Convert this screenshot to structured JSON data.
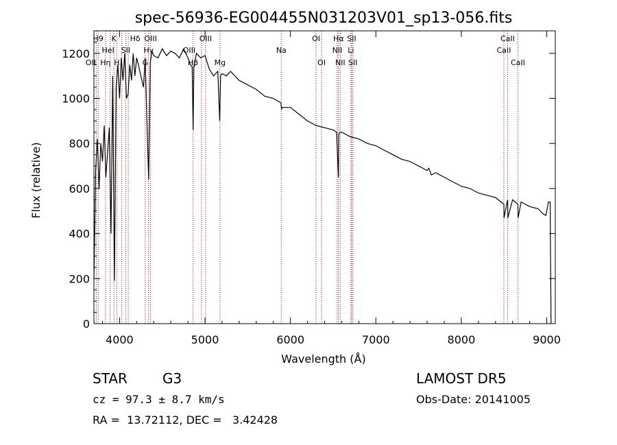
{
  "chart_data": {
    "type": "line",
    "title": "spec-56936-EG004455N031203V01_sp13-056.fits",
    "xlabel": "Wavelength (Å)",
    "ylabel": "Flux (relative)",
    "xlim": [
      3700,
      9100
    ],
    "ylim": [
      0,
      1300
    ],
    "xticks": [
      4000,
      5000,
      6000,
      7000,
      8000,
      9000
    ],
    "yticks": [
      0,
      200,
      400,
      600,
      800,
      1000,
      1200
    ],
    "grid": false,
    "series": [
      {
        "x": [
          3700,
          3720,
          3740,
          3760,
          3780,
          3800,
          3820,
          3840,
          3860,
          3880,
          3900,
          3920,
          3940,
          3960,
          3980,
          4000,
          4020,
          4040,
          4060,
          4080,
          4100,
          4120,
          4140,
          4160,
          4180,
          4200,
          4220,
          4250,
          4280,
          4300,
          4320,
          4340,
          4360,
          4380,
          4400,
          4450,
          4500,
          4550,
          4600,
          4650,
          4700,
          4750,
          4800,
          4830,
          4850,
          4861,
          4870,
          4900,
          4950,
          5000,
          5050,
          5100,
          5150,
          5172,
          5183,
          5200,
          5250,
          5300,
          5400,
          5500,
          5600,
          5700,
          5800,
          5890,
          5895,
          5900,
          6000,
          6100,
          6200,
          6300,
          6400,
          6500,
          6540,
          6562,
          6565,
          6580,
          6600,
          6700,
          6800,
          6900,
          7000,
          7100,
          7200,
          7300,
          7400,
          7500,
          7600,
          7620,
          7650,
          7700,
          7800,
          7900,
          8000,
          8100,
          8200,
          8300,
          8400,
          8498,
          8500,
          8542,
          8545,
          8600,
          8662,
          8665,
          8700,
          8800,
          8900,
          8950,
          8990,
          9000,
          9020,
          9040,
          9050
        ],
        "values": [
          200,
          680,
          820,
          600,
          800,
          720,
          880,
          650,
          760,
          870,
          400,
          1100,
          190,
          1050,
          1150,
          1000,
          1180,
          1080,
          1200,
          1000,
          1020,
          1150,
          1080,
          1200,
          1100,
          1180,
          1150,
          1100,
          1050,
          1180,
          900,
          640,
          1160,
          1210,
          1190,
          1180,
          1220,
          1190,
          1210,
          1200,
          1180,
          1220,
          1180,
          1150,
          1140,
          860,
          1140,
          1200,
          1180,
          1190,
          1130,
          1100,
          1120,
          900,
          1100,
          1110,
          1100,
          1120,
          1080,
          1060,
          1040,
          1010,
          1000,
          980,
          950,
          960,
          960,
          930,
          900,
          880,
          870,
          860,
          850,
          650,
          840,
          850,
          850,
          830,
          820,
          800,
          790,
          770,
          750,
          730,
          720,
          700,
          680,
          690,
          660,
          670,
          650,
          630,
          610,
          600,
          580,
          570,
          560,
          530,
          470,
          550,
          470,
          550,
          530,
          470,
          540,
          520,
          510,
          490,
          480,
          500,
          540,
          540,
          0
        ],
        "color": "#000000"
      }
    ],
    "line_markers": {
      "color": "#cc0000",
      "lines": [
        {
          "w": 3727,
          "label": "OII",
          "row": 2,
          "dx": -8
        },
        {
          "w": 3750,
          "label": "H9",
          "row": 0,
          "dx": 0
        },
        {
          "w": 3835,
          "label": "Hη",
          "row": 2,
          "dx": 0
        },
        {
          "w": 3889,
          "label": "",
          "row": 0,
          "dx": 0
        },
        {
          "w": 3934,
          "label": "K",
          "row": 0,
          "dx": 0
        },
        {
          "w": 3968,
          "label": "H",
          "row": 2,
          "dx": 0
        },
        {
          "w": 4026,
          "label": "HeI",
          "row": 1,
          "dx": -20
        },
        {
          "w": 4072,
          "label": "SII",
          "row": 1,
          "dx": 0
        },
        {
          "w": 4102,
          "label": "Hδ",
          "row": 0,
          "dx": 10
        },
        {
          "w": 4300,
          "label": "G",
          "row": 2,
          "dx": 0
        },
        {
          "w": 4340,
          "label": "Hγ",
          "row": 1,
          "dx": 0
        },
        {
          "w": 4363,
          "label": "OIII",
          "row": 0,
          "dx": 0
        },
        {
          "w": 4861,
          "label": "Hβ",
          "row": 2,
          "dx": 0
        },
        {
          "w": 4959,
          "label": "OIII",
          "row": 1,
          "dx": -18
        },
        {
          "w": 5007,
          "label": "OIII",
          "row": 0,
          "dx": 0
        },
        {
          "w": 5175,
          "label": "Mg",
          "row": 2,
          "dx": 0
        },
        {
          "w": 5893,
          "label": "Na",
          "row": 1,
          "dx": 0
        },
        {
          "w": 6300,
          "label": "OI",
          "row": 0,
          "dx": 0
        },
        {
          "w": 6364,
          "label": "OI",
          "row": 2,
          "dx": 0
        },
        {
          "w": 6548,
          "label": "NII",
          "row": 1,
          "dx": 0
        },
        {
          "w": 6563,
          "label": "Hα",
          "row": 0,
          "dx": 0
        },
        {
          "w": 6583,
          "label": "NII",
          "row": 2,
          "dx": 0
        },
        {
          "w": 6708,
          "label": "Li",
          "row": 1,
          "dx": 0
        },
        {
          "w": 6716,
          "label": "SII",
          "row": 0,
          "dx": 0
        },
        {
          "w": 6731,
          "label": "SII",
          "row": 2,
          "dx": 0
        },
        {
          "w": 8498,
          "label": "CaII",
          "row": 1,
          "dx": 0
        },
        {
          "w": 8542,
          "label": "CaII",
          "row": 0,
          "dx": 0
        },
        {
          "w": 8662,
          "label": "CaII",
          "row": 2,
          "dx": 0
        }
      ]
    }
  },
  "info": {
    "class_label": "STAR",
    "subclass": "G3",
    "redshift": "cz = 97.3 ± 8.7 km/s",
    "coords": "RA =  13.72112, DEC =   3.42428",
    "survey": "LAMOST DR5",
    "obs_date": "Obs-Date: 20141005"
  }
}
